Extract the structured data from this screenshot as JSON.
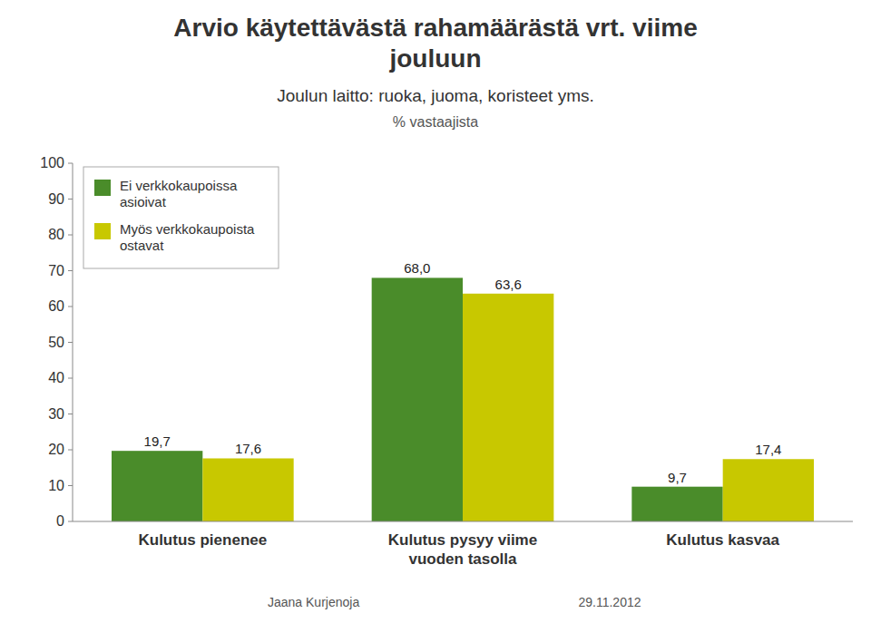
{
  "chart_data": {
    "type": "bar",
    "title": "Arvio käytettävästä rahamäärästä vrt. viime\njouluun",
    "subtitle": "Joulun laitto: ruoka, juoma, koristeet yms.\n% vastaajista",
    "annotations": [
      "Jaana Kurjenoja",
      "29.11.2012"
    ],
    "categories": [
      "Kulutus pienenee",
      "Kulutus pysyy viime\nvuoden tasolla",
      "Kulutus kasvaa"
    ],
    "series": [
      {
        "name": "Ei verkkokaupoissa\nasioivat",
        "color": "#4a8c2a",
        "values": [
          19.7,
          68.0,
          9.7
        ],
        "value_labels": [
          "19,7",
          "68,0",
          "9,7"
        ]
      },
      {
        "name": "Myös verkkokaupoista\nostavat",
        "color": "#c8c800",
        "values": [
          17.6,
          63.6,
          17.4
        ],
        "value_labels": [
          "17,6",
          "63,6",
          "17,4"
        ]
      }
    ],
    "ylim": [
      0,
      100
    ],
    "yticks": [
      0,
      10,
      20,
      30,
      40,
      50,
      60,
      70,
      80,
      90,
      100
    ],
    "grid": false,
    "legend": "upper left",
    "data_labels": true
  }
}
